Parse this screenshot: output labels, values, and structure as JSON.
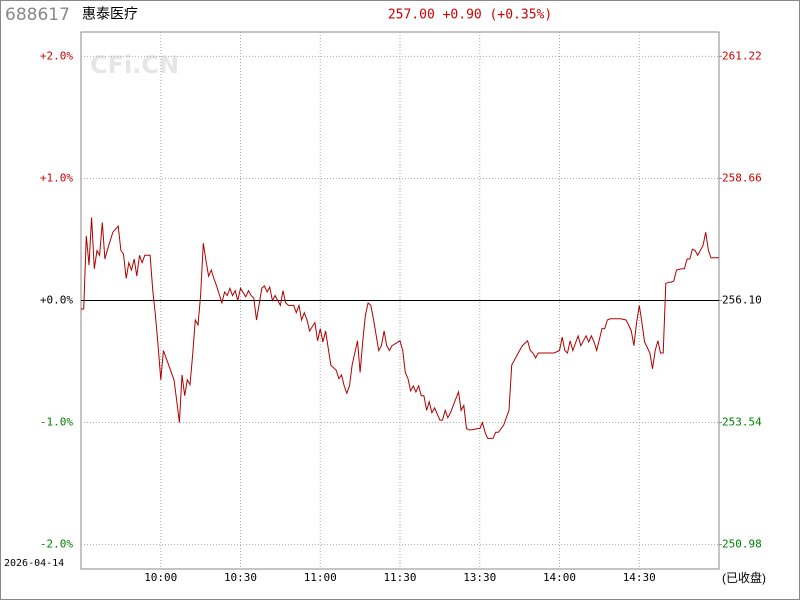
{
  "header": {
    "code": "688617",
    "name": "惠泰医疗",
    "quote": "257.00 +0.90 (+0.35%)"
  },
  "watermark": "CFi.CN",
  "date": "2026-04-14",
  "status": "(已收盘)",
  "chart_data": {
    "type": "line",
    "grid": true,
    "label_colors": {
      "up": "#cc0000",
      "down": "#008000",
      "flat": "#000000"
    },
    "xlim": [
      0,
      240
    ],
    "xticks": [
      {
        "value": 30,
        "label": "10:00"
      },
      {
        "value": 60,
        "label": "10:30"
      },
      {
        "value": 90,
        "label": "11:00"
      },
      {
        "value": 120,
        "label": "11:30"
      },
      {
        "value": 150,
        "label": "13:30"
      },
      {
        "value": 180,
        "label": "14:00"
      },
      {
        "value": 210,
        "label": "14:30"
      }
    ],
    "ylim": [
      -2.2,
      2.2
    ],
    "yticks": [
      {
        "value": 2,
        "label": "+2.0%"
      },
      {
        "value": 1,
        "label": "+1.0%"
      },
      {
        "value": 0,
        "label": "+0.0%"
      },
      {
        "value": -1,
        "label": "-1.0%"
      },
      {
        "value": -2,
        "label": "-2.0%"
      }
    ],
    "y2lim": [
      250.47,
      261.73
    ],
    "y2ticks": [
      261.22,
      258.66,
      {
        "value": 256.1,
        "label": "256.10"
      },
      253.54,
      250.98
    ],
    "series": [
      {
        "color": "#b00000",
        "x": [
          0,
          1,
          2,
          3,
          4,
          5,
          6,
          7,
          8,
          9,
          10,
          11,
          12,
          14,
          15,
          16,
          17,
          18,
          19,
          20,
          21,
          22,
          23,
          24,
          26,
          27,
          28,
          29,
          30,
          31,
          32,
          33,
          35,
          36,
          37,
          38,
          39,
          40,
          41,
          42,
          43,
          44,
          45,
          46,
          47,
          48,
          49,
          50,
          51,
          53,
          54,
          55,
          56,
          57,
          58,
          59,
          60,
          62,
          63,
          64,
          65,
          66,
          68,
          69,
          70,
          71,
          72,
          73,
          75,
          76,
          77,
          78,
          80,
          81,
          82,
          83,
          84,
          85,
          86,
          88,
          89,
          90,
          91,
          92,
          93,
          94,
          96,
          97,
          98,
          99,
          100,
          101,
          102,
          104,
          105,
          106,
          107,
          108,
          109,
          110,
          112,
          113,
          114,
          115,
          116,
          117,
          120,
          121,
          122,
          123,
          124,
          125,
          126,
          127,
          128,
          129,
          130,
          131,
          132,
          133,
          135,
          136,
          137,
          138,
          139,
          140,
          142,
          143,
          144,
          145,
          146,
          147,
          149,
          150,
          151,
          152,
          153,
          154,
          155,
          156,
          157,
          159,
          160,
          161,
          162,
          163,
          164,
          165,
          166,
          168,
          169,
          170,
          171,
          172,
          173,
          175,
          176,
          178,
          180,
          181,
          182,
          183,
          184,
          185,
          187,
          188,
          189,
          190,
          191,
          192,
          193,
          194,
          196,
          197,
          198,
          199,
          201,
          203,
          205,
          206,
          207,
          208,
          209,
          210,
          211,
          212,
          214,
          215,
          216,
          217,
          218,
          219,
          220,
          221,
          222,
          223,
          224,
          226,
          227,
          228,
          229,
          230,
          231,
          232,
          234,
          235,
          236,
          237,
          238,
          240
        ],
        "values": [
          -0.07,
          -0.07,
          0.53,
          0.29,
          0.68,
          0.26,
          0.41,
          0.37,
          0.64,
          0.34,
          0.42,
          0.49,
          0.56,
          0.61,
          0.41,
          0.38,
          0.18,
          0.31,
          0.25,
          0.34,
          0.2,
          0.37,
          0.31,
          0.37,
          0.37,
          0.08,
          -0.12,
          -0.37,
          -0.65,
          -0.41,
          -0.47,
          -0.53,
          -0.65,
          -0.82,
          -1.0,
          -0.61,
          -0.78,
          -0.65,
          -0.69,
          -0.45,
          -0.16,
          -0.2,
          0.04,
          0.47,
          0.33,
          0.2,
          0.25,
          0.18,
          0.12,
          -0.02,
          0.07,
          0.04,
          0.1,
          0.04,
          0.08,
          0,
          0.1,
          0.03,
          0.08,
          0.04,
          0.02,
          -0.16,
          0.1,
          0.12,
          0.07,
          0.11,
          0,
          0.04,
          -0.04,
          0.08,
          -0.02,
          -0.04,
          -0.04,
          -0.1,
          -0.04,
          -0.16,
          -0.1,
          -0.16,
          -0.25,
          -0.18,
          -0.33,
          -0.23,
          -0.34,
          -0.25,
          -0.39,
          -0.53,
          -0.57,
          -0.64,
          -0.61,
          -0.7,
          -0.76,
          -0.7,
          -0.53,
          -0.33,
          -0.59,
          -0.33,
          -0.12,
          -0.02,
          -0.04,
          -0.15,
          -0.41,
          -0.37,
          -0.25,
          -0.37,
          -0.41,
          -0.37,
          -0.33,
          -0.41,
          -0.59,
          -0.64,
          -0.74,
          -0.7,
          -0.75,
          -0.7,
          -0.78,
          -0.78,
          -0.9,
          -0.83,
          -0.92,
          -0.88,
          -0.98,
          -0.98,
          -0.9,
          -0.96,
          -0.92,
          -0.86,
          -0.75,
          -0.9,
          -0.86,
          -1.05,
          -1.06,
          -1.06,
          -1.05,
          -1.05,
          -1.0,
          -1.08,
          -1.13,
          -1.13,
          -1.13,
          -1.08,
          -1.08,
          -1.02,
          -0.96,
          -0.9,
          -0.53,
          -0.49,
          -0.45,
          -0.41,
          -0.37,
          -0.33,
          -0.41,
          -0.43,
          -0.47,
          -0.43,
          -0.43,
          -0.43,
          -0.43,
          -0.43,
          -0.41,
          -0.3,
          -0.41,
          -0.43,
          -0.33,
          -0.41,
          -0.29,
          -0.37,
          -0.33,
          -0.29,
          -0.34,
          -0.29,
          -0.34,
          -0.41,
          -0.23,
          -0.23,
          -0.16,
          -0.15,
          -0.15,
          -0.15,
          -0.16,
          -0.2,
          -0.25,
          -0.37,
          -0.18,
          -0.04,
          -0.18,
          -0.34,
          -0.43,
          -0.56,
          -0.41,
          -0.33,
          -0.43,
          -0.43,
          0.14,
          0.15,
          0.15,
          0.16,
          0.25,
          0.26,
          0.26,
          0.34,
          0.34,
          0.42,
          0.41,
          0.37,
          0.45,
          0.56,
          0.41,
          0.35,
          0.35,
          0.35
        ]
      }
    ]
  }
}
